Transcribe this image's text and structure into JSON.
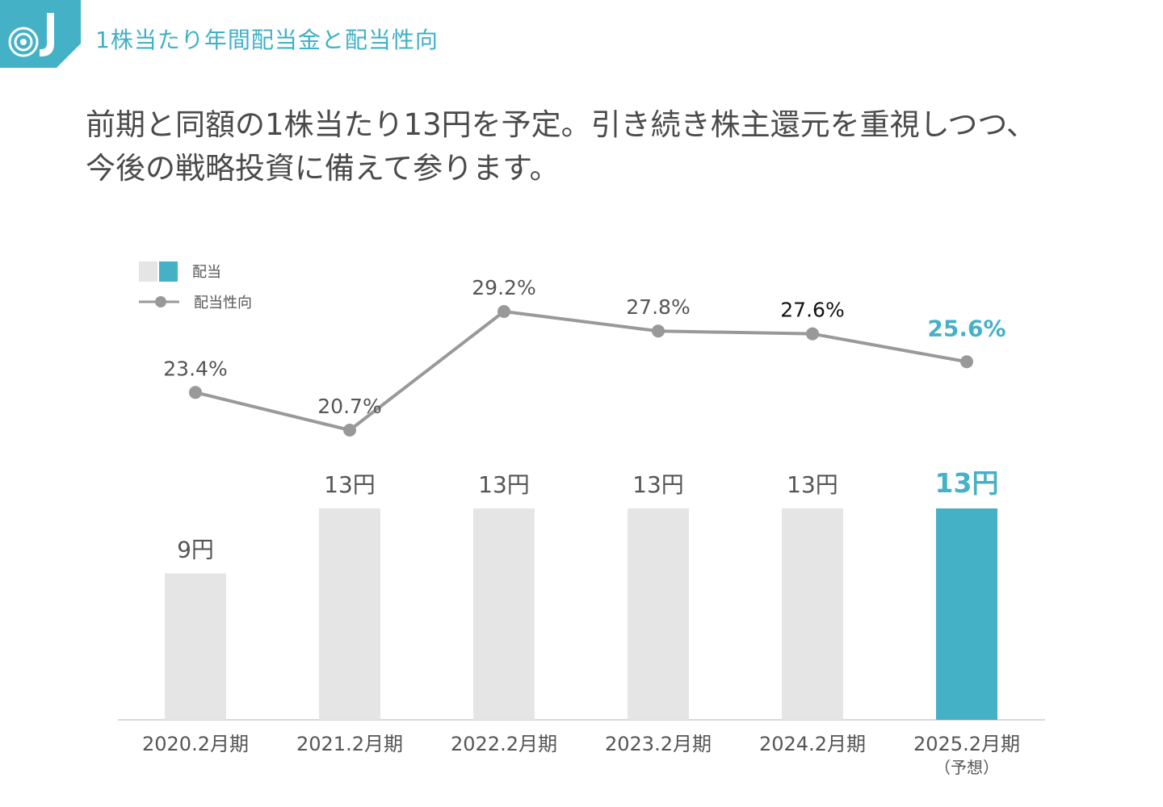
{
  "header": {
    "title": "1株当たり年間配当金と配当性向",
    "logo_icon": "target-logo-icon",
    "accent_color": "#45b1c6"
  },
  "headline": {
    "line1": "前期と同額の1株当たり13円を予定。引き続き株主還元を重視しつつ、",
    "line2": "今後の戦略投資に備えて参ります。"
  },
  "legend": {
    "bar_label": "配当",
    "line_label": "配当性向"
  },
  "chart_data": {
    "type": "bar",
    "categories": [
      "2020.2月期",
      "2021.2月期",
      "2022.2月期",
      "2023.2月期",
      "2024.2月期",
      "2025.2月期"
    ],
    "category_notes": [
      "",
      "",
      "",
      "",
      "",
      "（予想）"
    ],
    "series": [
      {
        "name": "配当",
        "type": "bar",
        "unit": "円",
        "values": [
          9,
          13,
          13,
          13,
          13,
          13
        ],
        "labels": [
          "9円",
          "13円",
          "13円",
          "13円",
          "13円",
          "13円"
        ]
      },
      {
        "name": "配当性向",
        "type": "line",
        "unit": "%",
        "values": [
          23.4,
          20.7,
          29.2,
          27.8,
          27.6,
          25.6
        ],
        "labels": [
          "23.4%",
          "20.7%",
          "29.2%",
          "27.8%",
          "27.6%",
          "25.6%"
        ]
      }
    ],
    "highlight_index": 5,
    "highlight_color": "#45b1c6",
    "bar_color": "#e5e5e5",
    "line_color": "#999999",
    "title": "",
    "xlabel": "",
    "ylabel": "",
    "ylim": [
      0,
      13
    ]
  }
}
